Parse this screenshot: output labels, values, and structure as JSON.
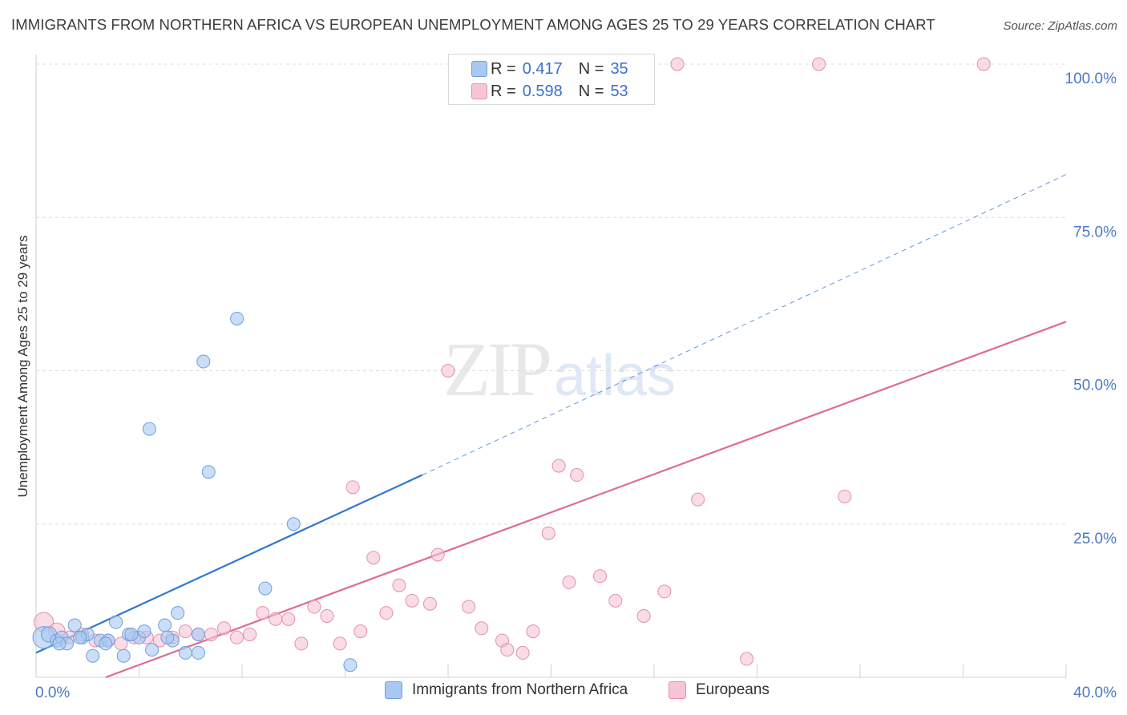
{
  "header": {
    "title": "IMMIGRANTS FROM NORTHERN AFRICA VS EUROPEAN UNEMPLOYMENT AMONG AGES 25 TO 29 YEARS CORRELATION CHART",
    "source": "Source: ZipAtlas.com"
  },
  "watermark": {
    "zip": "ZIP",
    "atlas": "atlas"
  },
  "legend": {
    "rows": [
      {
        "r_label": "R =",
        "r_value": "0.417",
        "n_label": "N =",
        "n_value": "35",
        "color": "#a9c8f2",
        "border": "#6f9edc"
      },
      {
        "r_label": "R =",
        "r_value": "0.598",
        "n_label": "N =",
        "n_value": "53",
        "color": "#f7c5d3",
        "border": "#e48fab"
      }
    ]
  },
  "bottom_legend": {
    "items": [
      {
        "label": "Immigrants from Northern Africa",
        "color": "#a9c8f2",
        "border": "#6f9edc"
      },
      {
        "label": "Europeans",
        "color": "#f7c5d3",
        "border": "#e48fab"
      }
    ]
  },
  "chart_data": {
    "type": "scatter",
    "ylabel": "Unemployment Among Ages 25 to 29 years",
    "xlim": [
      0,
      40
    ],
    "ylim": [
      0,
      100
    ],
    "x_tick_labels": [
      {
        "value": 0,
        "label": "0.0%"
      },
      {
        "value": 40,
        "label": "40.0%"
      }
    ],
    "y_tick_labels": [
      {
        "value": 25,
        "label": "25.0%"
      },
      {
        "value": 50,
        "label": "50.0%"
      },
      {
        "value": 75,
        "label": "75.0%"
      },
      {
        "value": 100,
        "label": "100.0%"
      }
    ],
    "series": [
      {
        "color": "#a9c8f2",
        "stroke": "#6f9edc",
        "line_color": "#2f76d2",
        "trend": {
          "x1": 0,
          "y1": 4.0,
          "x2": 15.0,
          "y2": 33.0,
          "dash_x2": 40,
          "dash_y2": 82.0
        },
        "points": [
          [
            0.3,
            6.5,
            1.7
          ],
          [
            0.5,
            7.0,
            1.2
          ],
          [
            0.8,
            6.0,
            1
          ],
          [
            1.0,
            6.5,
            1
          ],
          [
            1.2,
            5.5,
            1
          ],
          [
            1.5,
            8.5,
            1
          ],
          [
            1.8,
            6.5,
            1
          ],
          [
            2.0,
            7.0,
            1
          ],
          [
            2.2,
            3.5,
            1
          ],
          [
            2.5,
            6.0,
            1
          ],
          [
            2.8,
            6.0,
            1
          ],
          [
            3.1,
            9.0,
            1
          ],
          [
            3.4,
            3.5,
            1
          ],
          [
            3.6,
            7.0,
            1
          ],
          [
            4.0,
            6.5,
            1
          ],
          [
            4.2,
            7.5,
            1
          ],
          [
            4.5,
            4.5,
            1
          ],
          [
            4.4,
            40.5,
            1
          ],
          [
            5.0,
            8.5,
            1
          ],
          [
            5.3,
            6.0,
            1
          ],
          [
            5.5,
            10.5,
            1
          ],
          [
            5.8,
            4.0,
            1
          ],
          [
            6.3,
            4.0,
            1
          ],
          [
            6.3,
            7.0,
            1
          ],
          [
            6.5,
            51.5,
            1
          ],
          [
            6.7,
            33.5,
            1
          ],
          [
            7.8,
            58.5,
            1
          ],
          [
            10.0,
            25.0,
            1
          ],
          [
            8.9,
            14.5,
            1
          ],
          [
            12.2,
            2.0,
            1
          ],
          [
            1.7,
            6.5,
            1
          ],
          [
            0.9,
            5.5,
            1
          ],
          [
            3.7,
            7.0,
            1
          ],
          [
            5.1,
            6.5,
            1
          ],
          [
            2.7,
            5.5,
            1
          ]
        ]
      },
      {
        "color": "#f7c5d3",
        "stroke": "#e48fab",
        "line_color": "#e06b92",
        "trend": {
          "x1": 2.7,
          "y1": 0.0,
          "x2": 40,
          "y2": 58.0
        },
        "points": [
          [
            0.3,
            9.0,
            1.5
          ],
          [
            0.8,
            7.5,
            1.3
          ],
          [
            1.3,
            6.5,
            1
          ],
          [
            1.8,
            7.0,
            1
          ],
          [
            2.3,
            6.0,
            1
          ],
          [
            2.8,
            6.0,
            1
          ],
          [
            3.3,
            5.5,
            1
          ],
          [
            3.8,
            6.5,
            1
          ],
          [
            4.3,
            6.5,
            1
          ],
          [
            4.8,
            6.0,
            1
          ],
          [
            5.3,
            6.5,
            1
          ],
          [
            5.8,
            7.5,
            1
          ],
          [
            6.3,
            7.0,
            1
          ],
          [
            6.8,
            7.0,
            1
          ],
          [
            7.3,
            8.0,
            1
          ],
          [
            7.8,
            6.5,
            1
          ],
          [
            8.3,
            7.0,
            1
          ],
          [
            8.8,
            10.5,
            1
          ],
          [
            9.3,
            9.5,
            1
          ],
          [
            9.8,
            9.5,
            1
          ],
          [
            10.3,
            5.5,
            1
          ],
          [
            10.8,
            11.5,
            1
          ],
          [
            11.3,
            10.0,
            1
          ],
          [
            11.8,
            5.5,
            1
          ],
          [
            12.3,
            31.0,
            1
          ],
          [
            12.6,
            7.5,
            1
          ],
          [
            13.1,
            19.5,
            1
          ],
          [
            13.6,
            10.5,
            1
          ],
          [
            14.1,
            15.0,
            1
          ],
          [
            14.6,
            12.5,
            1
          ],
          [
            15.3,
            12.0,
            1
          ],
          [
            15.6,
            20.0,
            1
          ],
          [
            16.0,
            50.0,
            1
          ],
          [
            16.8,
            11.5,
            1
          ],
          [
            17.3,
            8.0,
            1
          ],
          [
            18.1,
            6.0,
            1
          ],
          [
            18.3,
            4.5,
            1
          ],
          [
            18.9,
            4.0,
            1
          ],
          [
            19.3,
            7.5,
            1
          ],
          [
            19.9,
            23.5,
            1
          ],
          [
            20.3,
            34.5,
            1
          ],
          [
            20.7,
            15.5,
            1
          ],
          [
            21.0,
            33.0,
            1
          ],
          [
            21.9,
            16.5,
            1
          ],
          [
            22.5,
            12.5,
            1
          ],
          [
            23.6,
            10.0,
            1
          ],
          [
            24.4,
            14.0,
            1
          ],
          [
            24.9,
            100.0,
            1
          ],
          [
            25.7,
            29.0,
            1
          ],
          [
            27.6,
            3.0,
            1
          ],
          [
            30.4,
            100.0,
            1
          ],
          [
            31.4,
            29.5,
            1
          ],
          [
            36.8,
            100.0,
            1
          ]
        ]
      }
    ]
  }
}
